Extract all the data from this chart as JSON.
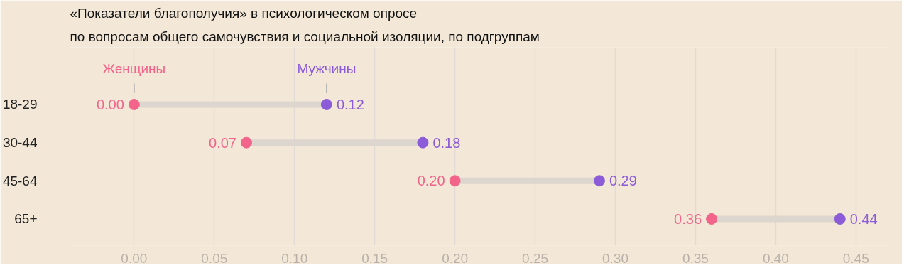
{
  "chart_data": {
    "type": "scatter",
    "orientation": "horizontal",
    "title": "«Показатели благополучия» в психологическом опросе",
    "subtitle": "по вопросам общего самочувствия и социальной изоляции, по подгруппам",
    "categories": [
      "18-29",
      "30-44",
      "45-64",
      "65+"
    ],
    "series": [
      {
        "name": "Женщины",
        "color": "#f2648a",
        "values": [
          0.0,
          0.07,
          0.2,
          0.36
        ],
        "value_labels": [
          "0.00",
          "0.07",
          "0.20",
          "0.36"
        ]
      },
      {
        "name": "Мужчины",
        "color": "#8b5bd8",
        "values": [
          0.12,
          0.18,
          0.29,
          0.44
        ],
        "value_labels": [
          "0.12",
          "0.18",
          "0.29",
          "0.44"
        ]
      }
    ],
    "xlim": [
      -0.04,
      0.47
    ],
    "xticks": [
      {
        "value": 0,
        "label": "0.00"
      },
      0.05,
      {
        "value": 0.1,
        "label": "0.10"
      },
      0.15,
      {
        "value": 0.2,
        "label": "0.20"
      },
      0.25,
      {
        "value": 0.3,
        "label": "0.30"
      },
      0.35,
      {
        "value": 0.4,
        "label": "0.40"
      },
      0.45
    ],
    "grid": "x",
    "legend": false,
    "marker": "circle"
  }
}
